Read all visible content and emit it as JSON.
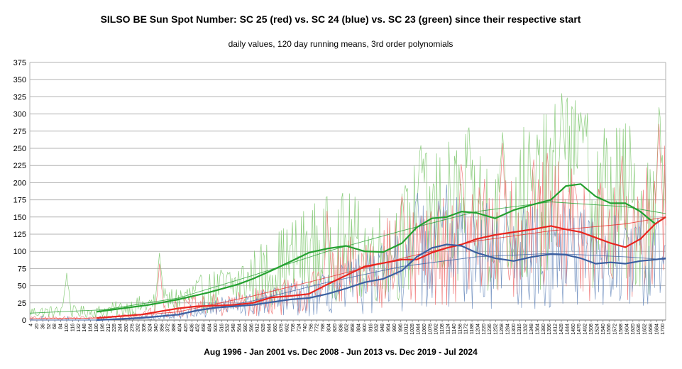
{
  "chart_data": {
    "type": "line",
    "title": "SILSO BE Sun Spot Number: SC 25 (red) vs. SC 24 (blue) vs. SC 23 (green) since their respective start",
    "subtitle": "daily values, 120 day running means, 3rd order polynomials",
    "xlabel": "Aug 1996 - Jan 2001 vs. Dec 2008 - Jun 2013  vs. Dec 2019 - Jul 2024",
    "ylabel": "",
    "xlim": [
      1,
      1708
    ],
    "ylim": [
      0,
      375
    ],
    "yticks": [
      0,
      25,
      50,
      75,
      100,
      125,
      150,
      175,
      200,
      225,
      250,
      275,
      300,
      325,
      350,
      375
    ],
    "xtick_start": 4,
    "xtick_step": 16,
    "grid": true,
    "legend": "none",
    "colors": {
      "sc25": "#e8251f",
      "sc24": "#3b5fa0",
      "sc23": "#23a02f",
      "sc25_daily": "#f07070",
      "sc24_daily": "#6f8fc0",
      "sc23_daily": "#7ec86f"
    },
    "series": [
      {
        "key": "sc23",
        "kind": "running_mean",
        "x": [
          180,
          250,
          320,
          400,
          480,
          560,
          600,
          650,
          700,
          750,
          800,
          850,
          900,
          950,
          1000,
          1040,
          1080,
          1120,
          1160,
          1200,
          1250,
          1300,
          1350,
          1400,
          1440,
          1480,
          1520,
          1560,
          1600,
          1640,
          1680,
          1708
        ],
        "y": [
          12,
          17,
          22,
          30,
          40,
          52,
          60,
          72,
          85,
          98,
          104,
          108,
          100,
          99,
          112,
          135,
          148,
          150,
          158,
          156,
          148,
          160,
          168,
          175,
          195,
          198,
          180,
          170,
          170,
          158,
          140,
          150
        ]
      },
      {
        "key": "sc25",
        "kind": "running_mean",
        "x": [
          180,
          300,
          400,
          450,
          500,
          550,
          600,
          650,
          700,
          750,
          800,
          850,
          900,
          950,
          1000,
          1040,
          1080,
          1120,
          1160,
          1200,
          1250,
          1300,
          1350,
          1400,
          1440,
          1480,
          1520,
          1560,
          1600,
          1640,
          1680,
          1708
        ],
        "y": [
          3,
          8,
          17,
          20,
          21,
          22,
          25,
          33,
          35,
          38,
          52,
          65,
          78,
          83,
          88,
          88,
          98,
          105,
          110,
          118,
          124,
          128,
          132,
          137,
          132,
          128,
          120,
          112,
          106,
          118,
          140,
          150
        ]
      },
      {
        "key": "sc24",
        "kind": "running_mean",
        "x": [
          180,
          300,
          400,
          450,
          500,
          550,
          600,
          650,
          700,
          750,
          800,
          850,
          900,
          950,
          1000,
          1040,
          1080,
          1120,
          1160,
          1200,
          1250,
          1300,
          1350,
          1400,
          1440,
          1480,
          1520,
          1560,
          1600,
          1640,
          1680,
          1708
        ],
        "y": [
          0,
          3,
          8,
          14,
          18,
          20,
          22,
          26,
          30,
          32,
          38,
          46,
          55,
          60,
          72,
          92,
          105,
          110,
          108,
          98,
          90,
          86,
          92,
          96,
          95,
          90,
          82,
          84,
          82,
          86,
          88,
          90
        ]
      },
      {
        "key": "sc23",
        "kind": "polynomial",
        "x": [
          1,
          200,
          400,
          600,
          800,
          1000,
          1200,
          1400,
          1600,
          1708
        ],
        "y": [
          10,
          15,
          32,
          65,
          100,
          130,
          158,
          172,
          165,
          155
        ]
      },
      {
        "key": "sc25",
        "kind": "polynomial",
        "x": [
          1,
          200,
          400,
          600,
          800,
          1000,
          1200,
          1400,
          1600,
          1708
        ],
        "y": [
          2,
          3,
          12,
          35,
          62,
          90,
          115,
          130,
          140,
          150
        ]
      },
      {
        "key": "sc24",
        "kind": "polynomial",
        "x": [
          1,
          200,
          400,
          600,
          800,
          1000,
          1200,
          1400,
          1600,
          1708
        ],
        "y": [
          0,
          0,
          8,
          28,
          55,
          78,
          92,
          97,
          92,
          88
        ]
      }
    ],
    "daily": [
      {
        "key": "sc23",
        "x_start": 1,
        "x_end": 1708,
        "trend": "sc23",
        "amplitude": 0.75,
        "peaks": [
          [
            100,
            78
          ],
          [
            350,
            108
          ],
          [
            1050,
            292
          ],
          [
            1180,
            285
          ],
          [
            1270,
            295
          ],
          [
            1430,
            352
          ],
          [
            1480,
            320
          ],
          [
            1690,
            352
          ]
        ]
      },
      {
        "key": "sc25",
        "x_start": 1,
        "x_end": 1708,
        "trend": "sc25",
        "amplitude": 0.8,
        "peaks": [
          [
            350,
            90
          ],
          [
            800,
            170
          ],
          [
            1000,
            200
          ],
          [
            1160,
            250
          ],
          [
            1270,
            260
          ],
          [
            1590,
            265
          ],
          [
            1690,
            290
          ]
        ]
      },
      {
        "key": "sc24",
        "x_start": 1,
        "x_end": 1708,
        "trend": "sc24",
        "amplitude": 0.85,
        "peaks": [
          [
            1040,
            220
          ],
          [
            1100,
            190
          ],
          [
            1280,
            180
          ],
          [
            1600,
            150
          ]
        ]
      }
    ]
  }
}
